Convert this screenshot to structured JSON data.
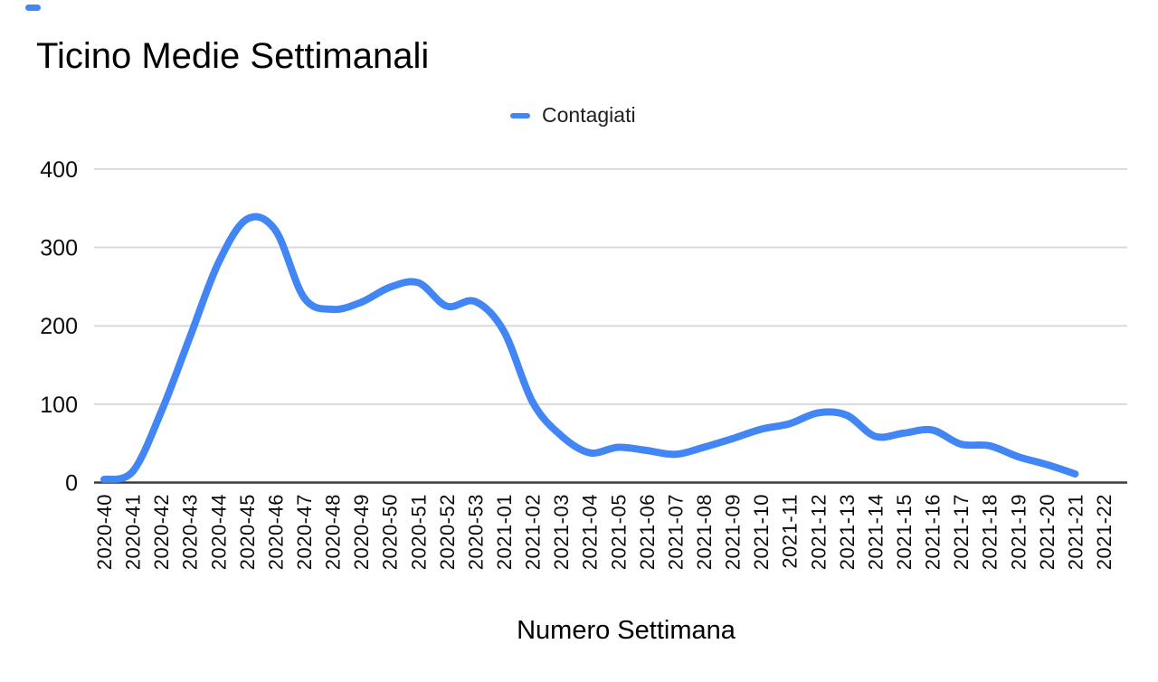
{
  "chart_data": {
    "type": "line",
    "title": "Ticino Medie Settimanali",
    "xlabel": "Numero Settimana",
    "ylabel": "",
    "legend_position": "top",
    "grid": true,
    "y_ticks": [
      0,
      100,
      200,
      300,
      400
    ],
    "ylim": [
      0,
      430
    ],
    "categories": [
      "2020-40",
      "2020-41",
      "2020-42",
      "2020-43",
      "2020-44",
      "2020-45",
      "2020-46",
      "2020-47",
      "2020-48",
      "2020-49",
      "2020-50",
      "2020-51",
      "2020-52",
      "2020-53",
      "2021-01",
      "2021-02",
      "2021-03",
      "2021-04",
      "2021-05",
      "2021-06",
      "2021-07",
      "2021-08",
      "2021-09",
      "2021-10",
      "2021-11",
      "2021-12",
      "2021-13",
      "2021-14",
      "2021-15",
      "2021-16",
      "2021-17",
      "2021-18",
      "2021-19",
      "2021-20",
      "2021-21",
      "2021-22"
    ],
    "series": [
      {
        "name": "Contagiati",
        "color": "#4285f4",
        "values": [
          4,
          14,
          90,
          185,
          280,
          336,
          322,
          236,
          221,
          230,
          249,
          255,
          225,
          231,
          193,
          103,
          60,
          38,
          45,
          41,
          36,
          45,
          56,
          68,
          75,
          89,
          86,
          59,
          63,
          67,
          49,
          47,
          33,
          23,
          11,
          null
        ]
      }
    ],
    "line_smooth": true
  },
  "colors": {
    "line": "#4285f4",
    "grid": "#dadada",
    "axis": "#3c3c3c",
    "text": "#000000"
  }
}
